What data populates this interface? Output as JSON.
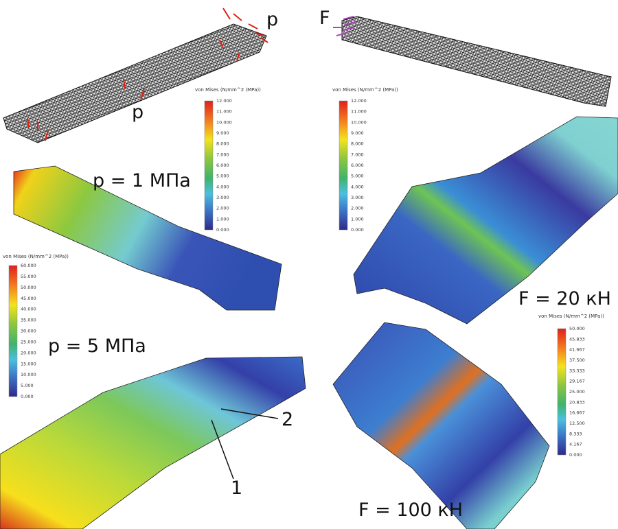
{
  "annotations": {
    "p_top": "p",
    "p_mid": "p",
    "f_top": "F",
    "case_p1": "p = 1 МПа",
    "case_f20": "F = 20 кН",
    "case_p5": "p = 5 МПа",
    "case_f100": "F = 100 кН",
    "marker_2": "2",
    "marker_1": "1"
  },
  "colorbars": [
    {
      "title": "von Mises (N/mm^2 (MPa))",
      "ticks": [
        "12.000",
        "11.000",
        "10.000",
        "9.000",
        "8.000",
        "7.000",
        "6.000",
        "5.000",
        "4.000",
        "3.000",
        "2.000",
        "1.000",
        "0.000"
      ]
    },
    {
      "title": "von Mises (N/mm^2 (MPa))",
      "ticks": [
        "12.000",
        "11.000",
        "10.000",
        "9.000",
        "8.000",
        "7.000",
        "6.000",
        "5.000",
        "4.000",
        "3.000",
        "2.000",
        "1.000",
        "0.000"
      ]
    },
    {
      "title": "von Mises (N/mm^2 (MPa))",
      "ticks": [
        "60.000",
        "55.000",
        "50.000",
        "45.000",
        "40.000",
        "35.000",
        "30.000",
        "25.000",
        "20.000",
        "15.000",
        "10.000",
        "5.000",
        "0.000"
      ]
    },
    {
      "title": "von Mises (N/mm^2 (MPa))",
      "ticks": [
        "50.000",
        "45.833",
        "41.667",
        "37.500",
        "33.333",
        "29.167",
        "25.000",
        "20.833",
        "16.667",
        "12.500",
        "8.333",
        "4.167",
        "0.000"
      ]
    }
  ]
}
